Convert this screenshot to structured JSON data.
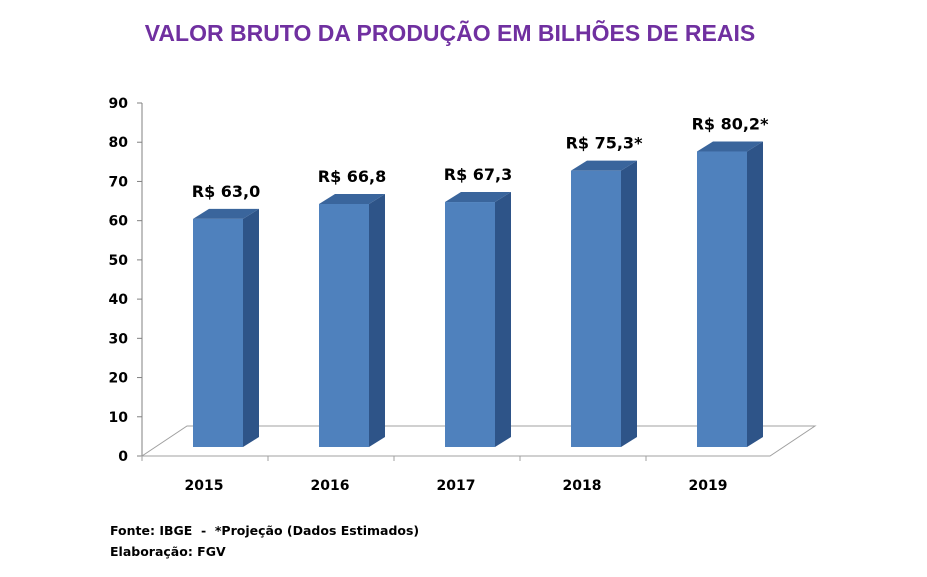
{
  "chart_data": {
    "type": "bar",
    "title": "VALOR BRUTO DA PRODUÇÃO EM BILHÕES DE REAIS",
    "categories": [
      "2015",
      "2016",
      "2017",
      "2018",
      "2019"
    ],
    "values": [
      63.0,
      66.8,
      67.3,
      75.3,
      80.2
    ],
    "data_labels": [
      "R$ 63,0",
      "R$ 66,8",
      "R$ 67,3",
      "R$ 75,3*",
      "R$ 80,2*"
    ],
    "ylim": [
      0,
      90
    ],
    "yticks": [
      0,
      10,
      20,
      30,
      40,
      50,
      60,
      70,
      80,
      90
    ],
    "xlabel": "",
    "ylabel": "",
    "style": "3d-column",
    "grid": false,
    "bar_color": "#4f81bd",
    "bar_side_color": "#2e5488",
    "bar_top_color": "#3a659c"
  },
  "notes": {
    "source": "Fonte: IBGE  -  *Projeção (Dados Estimados)",
    "credit": "Elaboração: FGV"
  }
}
